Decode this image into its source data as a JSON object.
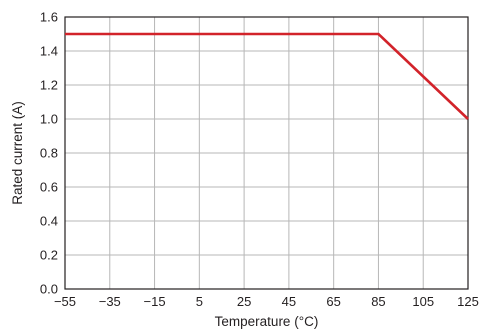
{
  "chart_data": {
    "type": "line",
    "title": "",
    "xlabel": "Temperature (°C)",
    "ylabel": "Rated current (A)",
    "xlim": [
      -55,
      125
    ],
    "ylim": [
      0,
      1.6
    ],
    "x_ticks": [
      -55,
      -35,
      -15,
      5,
      25,
      45,
      65,
      85,
      105,
      125
    ],
    "y_ticks": [
      0,
      0.2,
      0.4,
      0.6,
      0.8,
      1.0,
      1.2,
      1.4,
      1.6
    ],
    "x_tick_labels": [
      "−55",
      "−35",
      "−15",
      "5",
      "25",
      "45",
      "65",
      "85",
      "105",
      "125"
    ],
    "y_tick_labels": [
      "0.0",
      "0.2",
      "0.4",
      "0.6",
      "0.8",
      "1.0",
      "1.2",
      "1.4",
      "1.6"
    ],
    "grid": true,
    "series": [
      {
        "color": "#d2232a",
        "x": [
          -55,
          85,
          125
        ],
        "y": [
          1.5,
          1.5,
          1.0
        ]
      }
    ]
  }
}
